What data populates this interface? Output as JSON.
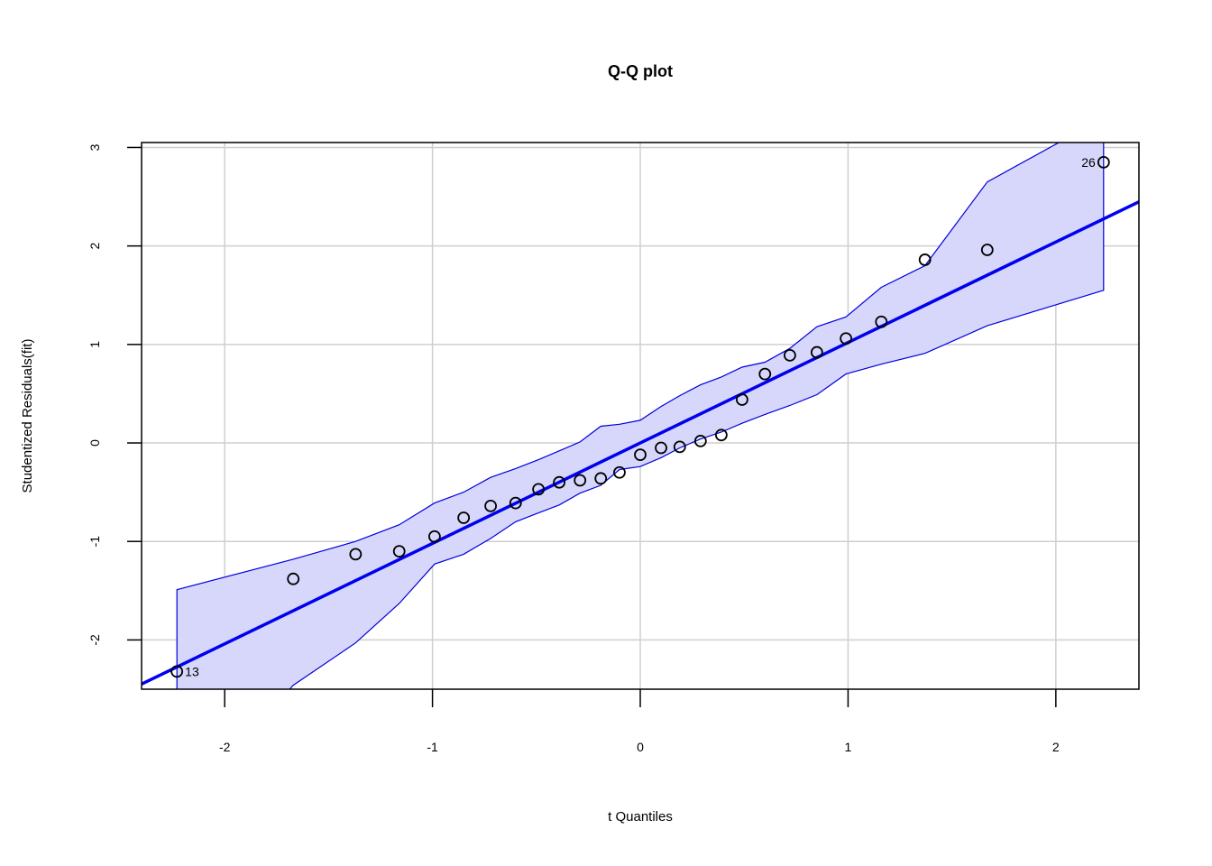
{
  "chart_data": {
    "type": "scatter",
    "title": "Q-Q plot",
    "xlabel": "t Quantiles",
    "ylabel": "Studentized Residuals(fit)",
    "xlim": [
      -2.4,
      2.4
    ],
    "ylim": [
      -2.5,
      3.05
    ],
    "xticks": [
      -2,
      -1,
      0,
      1,
      2
    ],
    "yticks": [
      -2,
      -1,
      0,
      1,
      2,
      3
    ],
    "grid": true,
    "colors": {
      "points": "#000000",
      "line": "#0000ee",
      "band_fill": "#d7d7fb",
      "band_edge": "#0000dd",
      "grid": "#cfcfcf"
    },
    "reference_line": {
      "slope": 1.02,
      "intercept": 0.0
    },
    "points": [
      {
        "x": -2.23,
        "y": -2.32,
        "label": "13"
      },
      {
        "x": -1.67,
        "y": -1.38
      },
      {
        "x": -1.37,
        "y": -1.13
      },
      {
        "x": -1.16,
        "y": -1.1
      },
      {
        "x": -0.99,
        "y": -0.95
      },
      {
        "x": -0.85,
        "y": -0.76
      },
      {
        "x": -0.72,
        "y": -0.64
      },
      {
        "x": -0.6,
        "y": -0.61
      },
      {
        "x": -0.49,
        "y": -0.47
      },
      {
        "x": -0.39,
        "y": -0.4
      },
      {
        "x": -0.29,
        "y": -0.38
      },
      {
        "x": -0.19,
        "y": -0.36
      },
      {
        "x": -0.1,
        "y": -0.3
      },
      {
        "x": 0.0,
        "y": -0.12
      },
      {
        "x": 0.1,
        "y": -0.05
      },
      {
        "x": 0.19,
        "y": -0.04
      },
      {
        "x": 0.29,
        "y": 0.02
      },
      {
        "x": 0.39,
        "y": 0.08
      },
      {
        "x": 0.49,
        "y": 0.44
      },
      {
        "x": 0.6,
        "y": 0.7
      },
      {
        "x": 0.72,
        "y": 0.89
      },
      {
        "x": 0.85,
        "y": 0.92
      },
      {
        "x": 0.99,
        "y": 1.06
      },
      {
        "x": 1.16,
        "y": 1.23
      },
      {
        "x": 1.37,
        "y": 1.86
      },
      {
        "x": 1.67,
        "y": 1.96
      },
      {
        "x": 2.23,
        "y": 2.85,
        "label": "26"
      }
    ],
    "band": {
      "x": [
        -2.23,
        -1.67,
        -1.37,
        -1.16,
        -0.99,
        -0.85,
        -0.72,
        -0.6,
        -0.49,
        -0.39,
        -0.29,
        -0.19,
        -0.1,
        0.0,
        0.1,
        0.19,
        0.29,
        0.39,
        0.49,
        0.6,
        0.72,
        0.85,
        0.99,
        1.16,
        1.37,
        1.67,
        2.23
      ],
      "upper": [
        -1.49,
        -1.18,
        -1.0,
        -0.83,
        -0.61,
        -0.5,
        -0.35,
        -0.26,
        -0.17,
        -0.08,
        0.01,
        0.17,
        0.19,
        0.23,
        0.37,
        0.48,
        0.59,
        0.67,
        0.77,
        0.82,
        0.96,
        1.18,
        1.28,
        1.58,
        1.8,
        2.65,
        3.3
      ],
      "lower": [
        -3.8,
        -2.46,
        -2.03,
        -1.63,
        -1.23,
        -1.13,
        -0.97,
        -0.8,
        -0.71,
        -0.63,
        -0.51,
        -0.43,
        -0.27,
        -0.24,
        -0.15,
        -0.05,
        0.04,
        0.11,
        0.2,
        0.29,
        0.38,
        0.49,
        0.7,
        0.8,
        0.91,
        1.19,
        1.55
      ]
    }
  }
}
